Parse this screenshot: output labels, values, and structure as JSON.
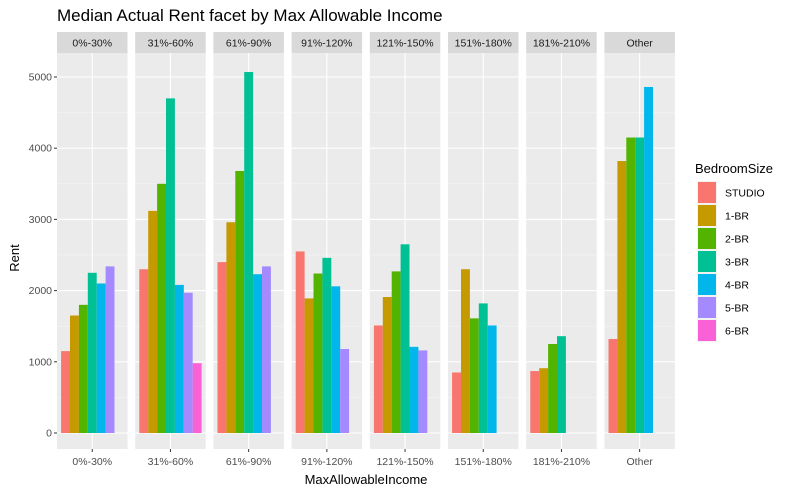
{
  "chart_data": {
    "type": "bar",
    "title": "Median Actual Rent facet by Max Allowable Income",
    "xlabel": "MaxAllowableIncome",
    "ylabel": "Rent",
    "ylim": [
      0,
      5300
    ],
    "yticks": [
      0,
      1000,
      2000,
      3000,
      4000,
      5000
    ],
    "grid": true,
    "legend_position": "right",
    "legend_title": "BedroomSize",
    "series_names": [
      "STUDIO",
      "1-BR",
      "2-BR",
      "3-BR",
      "4-BR",
      "5-BR",
      "6-BR"
    ],
    "colors": [
      "#F8766D",
      "#C49A00",
      "#53B400",
      "#00C094",
      "#00B6EB",
      "#A58AFF",
      "#FB61D7"
    ],
    "facets": [
      {
        "label": "0%-30%",
        "values": [
          1150,
          1650,
          1800,
          2250,
          2100,
          2340,
          null
        ]
      },
      {
        "label": "31%-60%",
        "values": [
          2300,
          3120,
          3500,
          4700,
          2080,
          1970,
          980
        ]
      },
      {
        "label": "61%-90%",
        "values": [
          2400,
          2960,
          3680,
          5070,
          2230,
          2340,
          null
        ]
      },
      {
        "label": "91%-120%",
        "values": [
          2550,
          1890,
          2240,
          2460,
          2060,
          1180,
          null
        ]
      },
      {
        "label": "121%-150%",
        "values": [
          1510,
          1910,
          2270,
          2650,
          1210,
          1160,
          null
        ]
      },
      {
        "label": "151%-180%",
        "values": [
          850,
          2300,
          1610,
          1820,
          1510,
          null,
          null
        ]
      },
      {
        "label": "181%-210%",
        "values": [
          870,
          910,
          1250,
          1360,
          null,
          null,
          null
        ]
      },
      {
        "label": "Other",
        "values": [
          1320,
          3820,
          4150,
          4150,
          4860,
          null,
          null
        ]
      }
    ]
  }
}
